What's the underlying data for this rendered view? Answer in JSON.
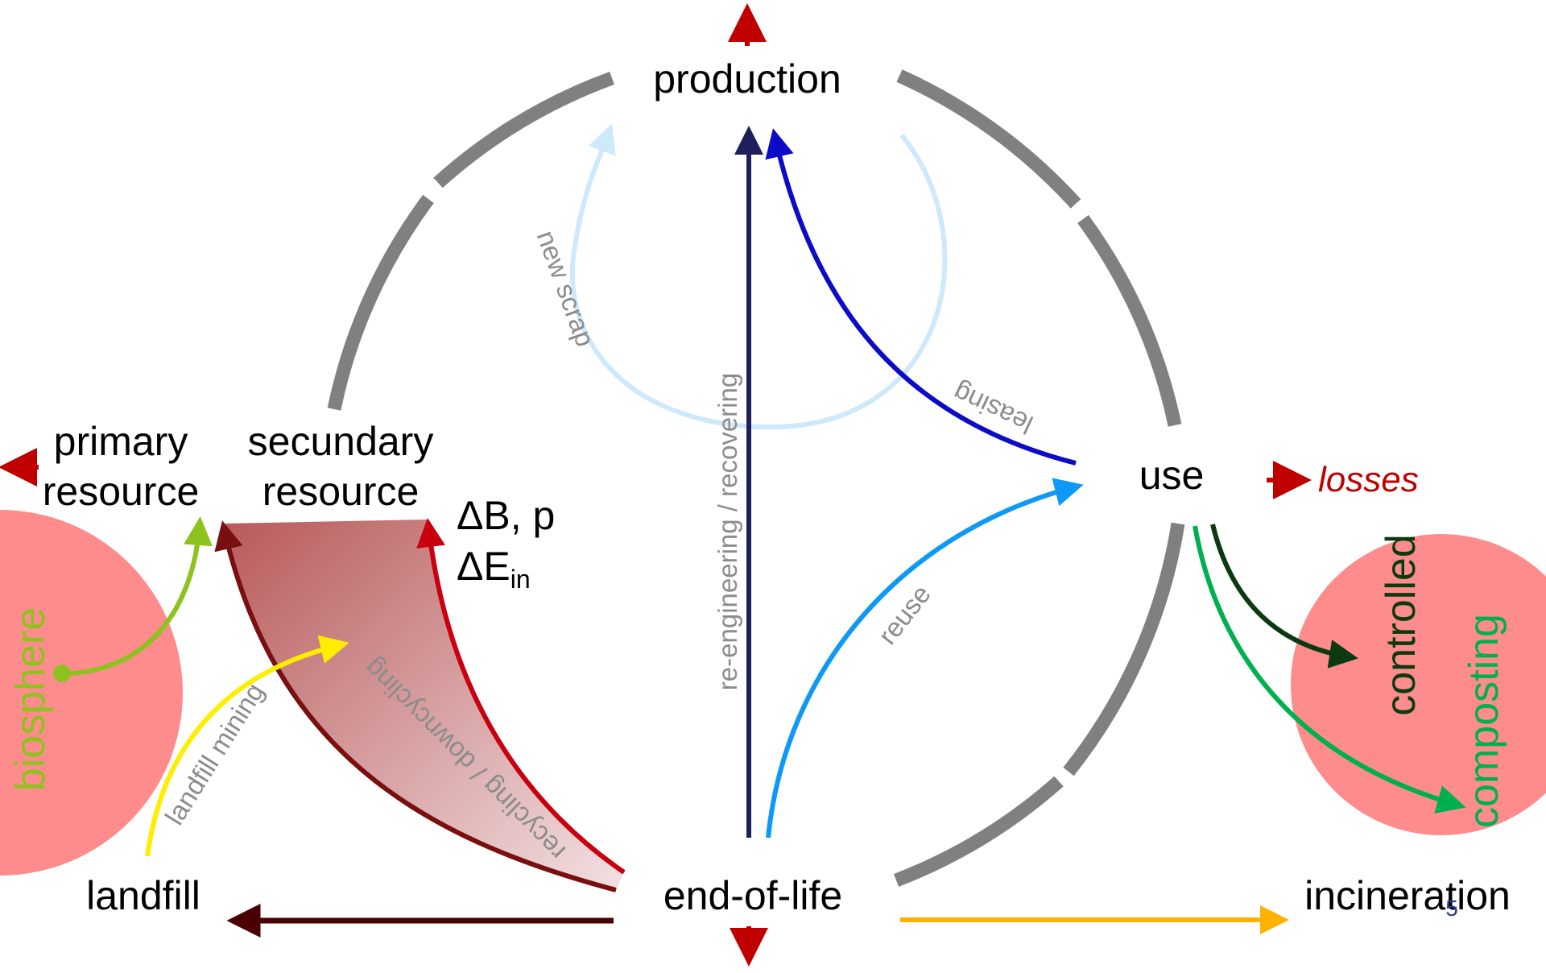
{
  "nodes": {
    "production": "production",
    "use": "use",
    "end_of_life": "end-of-life",
    "primary_resource": [
      "primary",
      "resource"
    ],
    "secundary_resource": [
      "secundary",
      "resource"
    ],
    "landfill": "landfill",
    "incineration": "incineration"
  },
  "quality": {
    "delta_b_p": "ΔB, p",
    "delta_e": "ΔE",
    "delta_e_sub": "in"
  },
  "losses": "losses",
  "zones": {
    "biosphere": "biosphere",
    "controlled": "controlled",
    "composting": "composting"
  },
  "flows": {
    "new_scrap": "new scrap",
    "re_engineering": "re-engineering / recovering",
    "leasing": "leasing",
    "reuse": "reuse",
    "recycling": "recycling / downcycling",
    "landfill_mining": "landfill mining"
  },
  "page_number": "5",
  "colors": {
    "cycle_gray": "#808080",
    "loss_red": "#c00000",
    "zone_pink": "#ff8c8c",
    "biosphere_green": "#8dc21f",
    "new_scrap_blue": "#cde9fb",
    "re_engineering_navy": "#1f1f5c",
    "leasing_blue": "#0b0bc8",
    "reuse_blue": "#0d99f5",
    "recycling_red": "#c8000f",
    "recycling_dark": "#7a0f0f",
    "landfill_arrow": "#4a0000",
    "landfill_mining_yellow": "#ffee00",
    "incineration_orange": "#ffb300",
    "controlled_dark": "#0b3a10",
    "composting_green": "#00b050"
  }
}
